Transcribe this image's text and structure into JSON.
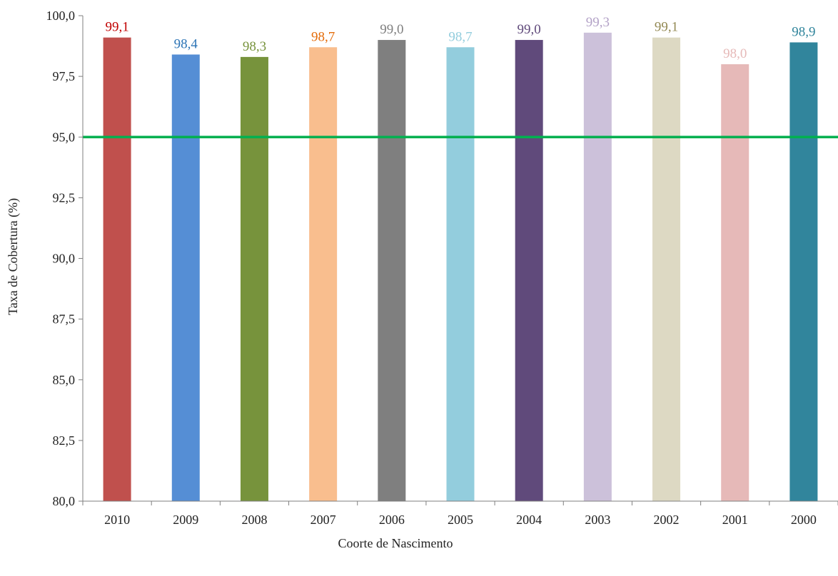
{
  "chart_data": {
    "type": "bar",
    "title": "",
    "xlabel": "Coorte de Nascimento",
    "ylabel": "Taxa de Cobertura (%)",
    "ylim": [
      80,
      100
    ],
    "yticks": [
      "80,0",
      "82,5",
      "85,0",
      "87,5",
      "90,0",
      "92,5",
      "95,0",
      "97,5",
      "100,0"
    ],
    "categories": [
      "2010",
      "2009",
      "2008",
      "2007",
      "2006",
      "2005",
      "2004",
      "2003",
      "2002",
      "2001",
      "2000"
    ],
    "values": [
      99.1,
      98.4,
      98.3,
      98.7,
      99.0,
      98.7,
      99.0,
      99.3,
      99.1,
      98.0,
      98.9
    ],
    "value_labels": [
      "99,1",
      "98,4",
      "98,3",
      "98,7",
      "99,0",
      "98,7",
      "99,0",
      "99,3",
      "99,1",
      "98,0",
      "98,9"
    ],
    "bar_colors": [
      "#c0504d",
      "#558ed5",
      "#77933c",
      "#f9be8e",
      "#7f7f7f",
      "#93cddd",
      "#604a7b",
      "#ccc1da",
      "#ddd9c3",
      "#e6b9b8",
      "#31859c"
    ],
    "label_colors": [
      "#c00000",
      "#2e75b6",
      "#77933c",
      "#e46c0a",
      "#7f7f7f",
      "#93cddd",
      "#604a7b",
      "#b3a2c7",
      "#938953",
      "#e6b9b8",
      "#31859c"
    ],
    "reference_line": {
      "value": 95.0,
      "color": "#00b050"
    },
    "grid": false,
    "legend": "none"
  }
}
